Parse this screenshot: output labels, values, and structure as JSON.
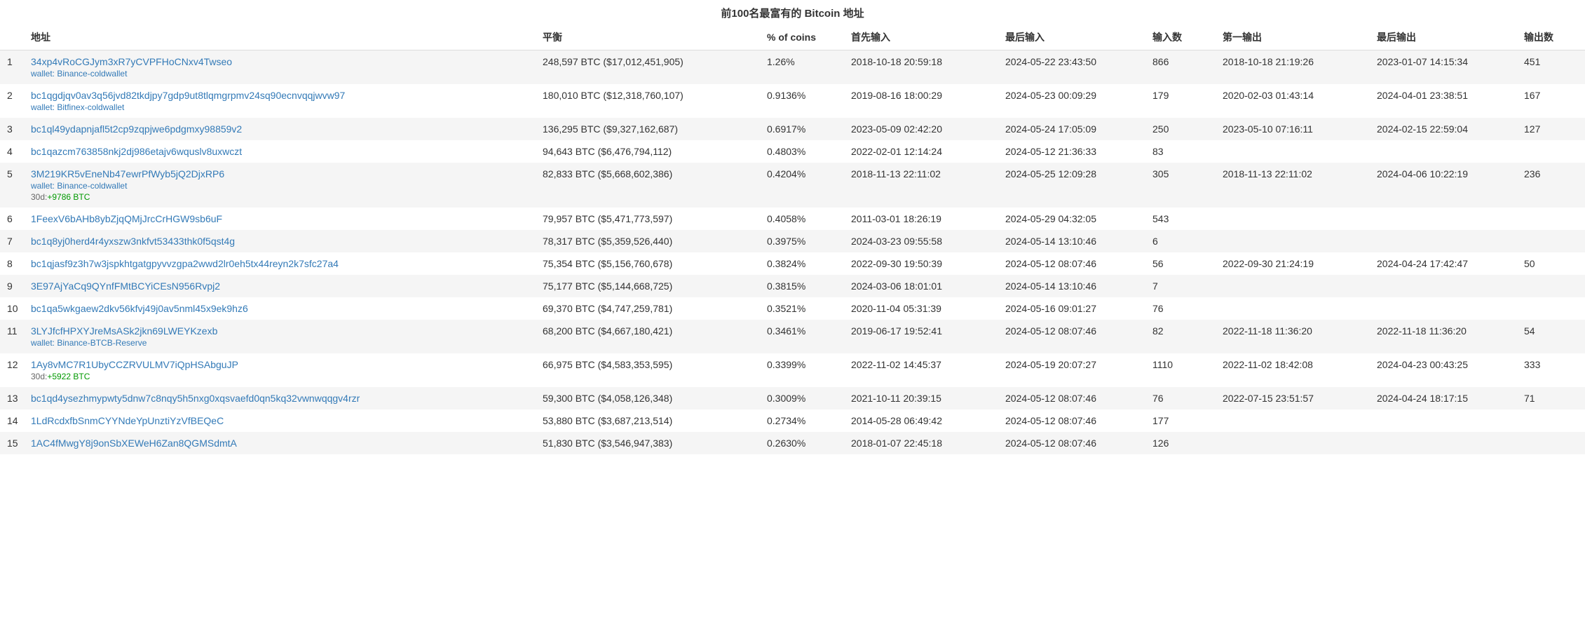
{
  "title": "前100名最富有的 Bitcoin 地址",
  "headers": {
    "idx": "",
    "addr": "地址",
    "balance": "平衡",
    "pct": "% of coins",
    "first_in": "首先输入",
    "last_in": "最后输入",
    "ins": "输入数",
    "first_out": "第一输出",
    "last_out": "最后输出",
    "outs": "输出数"
  },
  "rows": [
    {
      "idx": "1",
      "address": "34xp4vRoCGJym3xR7yCVPFHoCNxv4Twseo",
      "wallet": "wallet: Binance-coldwallet",
      "balance": "248,597 BTC ($17,012,451,905)",
      "pct": "1.26%",
      "first_in": "2018-10-18 20:59:18",
      "last_in": "2024-05-22 23:43:50",
      "ins": "866",
      "first_out": "2018-10-18 21:19:26",
      "last_out": "2023-01-07 14:15:34",
      "outs": "451"
    },
    {
      "idx": "2",
      "address": "bc1qgdjqv0av3q56jvd82tkdjpy7gdp9ut8tlqmgrpmv24sq90ecnvqqjwvw97",
      "wallet": "wallet: Bitfinex-coldwallet",
      "balance": "180,010 BTC ($12,318,760,107)",
      "pct": "0.9136%",
      "first_in": "2019-08-16 18:00:29",
      "last_in": "2024-05-23 00:09:29",
      "ins": "179",
      "first_out": "2020-02-03 01:43:14",
      "last_out": "2024-04-01 23:38:51",
      "outs": "167"
    },
    {
      "idx": "3",
      "address": "bc1ql49ydapnjafl5t2cp9zqpjwe6pdgmxy98859v2",
      "balance": "136,295 BTC ($9,327,162,687)",
      "pct": "0.6917%",
      "first_in": "2023-05-09 02:42:20",
      "last_in": "2024-05-24 17:05:09",
      "ins": "250",
      "first_out": "2023-05-10 07:16:11",
      "last_out": "2024-02-15 22:59:04",
      "outs": "127"
    },
    {
      "idx": "4",
      "address": "bc1qazcm763858nkj2dj986etajv6wquslv8uxwczt",
      "balance": "94,643 BTC ($6,476,794,112)",
      "pct": "0.4803%",
      "first_in": "2022-02-01 12:14:24",
      "last_in": "2024-05-12 21:36:33",
      "ins": "83",
      "first_out": "",
      "last_out": "",
      "outs": ""
    },
    {
      "idx": "5",
      "address": "3M219KR5vEneNb47ewrPfWyb5jQ2DjxRP6",
      "wallet": "wallet: Binance-coldwallet",
      "chg_prefix": "30d:",
      "chg_value": "+9786 BTC",
      "balance": "82,833 BTC ($5,668,602,386)",
      "pct": "0.4204%",
      "first_in": "2018-11-13 22:11:02",
      "last_in": "2024-05-25 12:09:28",
      "ins": "305",
      "first_out": "2018-11-13 22:11:02",
      "last_out": "2024-04-06 10:22:19",
      "outs": "236"
    },
    {
      "idx": "6",
      "address": "1FeexV6bAHb8ybZjqQMjJrcCrHGW9sb6uF",
      "balance": "79,957 BTC ($5,471,773,597)",
      "pct": "0.4058%",
      "first_in": "2011-03-01 18:26:19",
      "last_in": "2024-05-29 04:32:05",
      "ins": "543",
      "first_out": "",
      "last_out": "",
      "outs": ""
    },
    {
      "idx": "7",
      "address": "bc1q8yj0herd4r4yxszw3nkfvt53433thk0f5qst4g",
      "balance": "78,317 BTC ($5,359,526,440)",
      "pct": "0.3975%",
      "first_in": "2024-03-23 09:55:58",
      "last_in": "2024-05-14 13:10:46",
      "ins": "6",
      "first_out": "",
      "last_out": "",
      "outs": ""
    },
    {
      "idx": "8",
      "address": "bc1qjasf9z3h7w3jspkhtgatgpyvvzgpa2wwd2lr0eh5tx44reyn2k7sfc27a4",
      "balance": "75,354 BTC ($5,156,760,678)",
      "pct": "0.3824%",
      "first_in": "2022-09-30 19:50:39",
      "last_in": "2024-05-12 08:07:46",
      "ins": "56",
      "first_out": "2022-09-30 21:24:19",
      "last_out": "2024-04-24 17:42:47",
      "outs": "50"
    },
    {
      "idx": "9",
      "address": "3E97AjYaCq9QYnfFMtBCYiCEsN956Rvpj2",
      "balance": "75,177 BTC ($5,144,668,725)",
      "pct": "0.3815%",
      "first_in": "2024-03-06 18:01:01",
      "last_in": "2024-05-14 13:10:46",
      "ins": "7",
      "first_out": "",
      "last_out": "",
      "outs": ""
    },
    {
      "idx": "10",
      "address": "bc1qa5wkgaew2dkv56kfvj49j0av5nml45x9ek9hz6",
      "balance": "69,370 BTC ($4,747,259,781)",
      "pct": "0.3521%",
      "first_in": "2020-11-04 05:31:39",
      "last_in": "2024-05-16 09:01:27",
      "ins": "76",
      "first_out": "",
      "last_out": "",
      "outs": ""
    },
    {
      "idx": "11",
      "address": "3LYJfcfHPXYJreMsASk2jkn69LWEYKzexb",
      "wallet": "wallet: Binance-BTCB-Reserve",
      "balance": "68,200 BTC ($4,667,180,421)",
      "pct": "0.3461%",
      "first_in": "2019-06-17 19:52:41",
      "last_in": "2024-05-12 08:07:46",
      "ins": "82",
      "first_out": "2022-11-18 11:36:20",
      "last_out": "2022-11-18 11:36:20",
      "outs": "54"
    },
    {
      "idx": "12",
      "address": "1Ay8vMC7R1UbyCCZRVULMV7iQpHSAbguJP",
      "chg_prefix": "30d:",
      "chg_value": "+5922 BTC",
      "balance": "66,975 BTC ($4,583,353,595)",
      "pct": "0.3399%",
      "first_in": "2022-11-02 14:45:37",
      "last_in": "2024-05-19 20:07:27",
      "ins": "1110",
      "first_out": "2022-11-02 18:42:08",
      "last_out": "2024-04-23 00:43:25",
      "outs": "333"
    },
    {
      "idx": "13",
      "address": "bc1qd4ysezhmypwty5dnw7c8nqy5h5nxg0xqsvaefd0qn5kq32vwnwqqgv4rzr",
      "balance": "59,300 BTC ($4,058,126,348)",
      "pct": "0.3009%",
      "first_in": "2021-10-11 20:39:15",
      "last_in": "2024-05-12 08:07:46",
      "ins": "76",
      "first_out": "2022-07-15 23:51:57",
      "last_out": "2024-04-24 18:17:15",
      "outs": "71"
    },
    {
      "idx": "14",
      "address": "1LdRcdxfbSnmCYYNdeYpUnztiYzVfBEQeC",
      "balance": "53,880 BTC ($3,687,213,514)",
      "pct": "0.2734%",
      "first_in": "2014-05-28 06:49:42",
      "last_in": "2024-05-12 08:07:46",
      "ins": "177",
      "first_out": "",
      "last_out": "",
      "outs": ""
    },
    {
      "idx": "15",
      "address": "1AC4fMwgY8j9onSbXEWeH6Zan8QGMSdmtA",
      "balance": "51,830 BTC ($3,546,947,383)",
      "pct": "0.2630%",
      "first_in": "2018-01-07 22:45:18",
      "last_in": "2024-05-12 08:07:46",
      "ins": "126",
      "first_out": "",
      "last_out": "",
      "outs": ""
    }
  ]
}
